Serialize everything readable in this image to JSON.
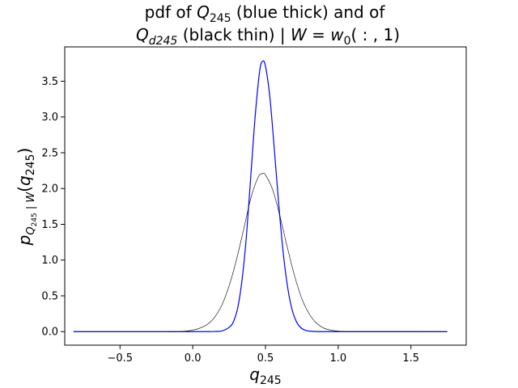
{
  "chart_data": {
    "type": "line",
    "title": {
      "line1": {
        "a": "pdf of ",
        "sym": "Q",
        "sub": "245",
        "b": " (blue thick) and of"
      },
      "line2": {
        "sym": "Q",
        "sub": "d245",
        "b": " (black thin)  | ",
        "w": "W",
        "eq": " = ",
        "w0": "w",
        "w0sub": "0",
        "args": "( : , 1)"
      }
    },
    "xlabel": {
      "sym": "q",
      "sub": "245"
    },
    "ylabel": {
      "p": "p",
      "subQ": "Q",
      "subQsub": "245",
      "bar": " | ",
      "subW": "W",
      "paren_open": "(",
      "q": "q",
      "qsub": "245",
      "paren_close": ")"
    },
    "xlim": [
      -0.88,
      1.88
    ],
    "ylim": [
      -0.1894,
      3.98
    ],
    "x_ticks": [
      -0.5,
      0.0,
      0.5,
      1.0,
      1.5
    ],
    "x_tick_labels": [
      "−0.5",
      "0.0",
      "0.5",
      "1.0",
      "1.5"
    ],
    "y_ticks": [
      0.0,
      0.5,
      1.0,
      1.5,
      2.0,
      2.5,
      3.0,
      3.5
    ],
    "y_tick_labels": [
      "0.0",
      "0.5",
      "1.0",
      "1.5",
      "2.0",
      "2.5",
      "3.0",
      "3.5"
    ],
    "grid": false,
    "series": [
      {
        "color": "#0000ff",
        "stroke": 1.2,
        "x": [
          -0.82,
          0.0,
          0.05,
          0.1,
          0.15,
          0.2,
          0.25,
          0.28,
          0.31,
          0.34,
          0.37,
          0.4,
          0.43,
          0.46,
          0.48,
          0.5,
          0.53,
          0.56,
          0.59,
          0.62,
          0.65,
          0.68,
          0.71,
          0.74,
          0.77,
          0.8,
          0.85,
          0.9,
          0.95,
          1.0,
          1.75
        ],
        "y": [
          0.0,
          0.0,
          0.0,
          0.0,
          0.002,
          0.009,
          0.06,
          0.14,
          0.34,
          0.74,
          1.36,
          2.2,
          3.03,
          3.64,
          3.78,
          3.71,
          3.28,
          2.57,
          1.81,
          1.14,
          0.65,
          0.33,
          0.15,
          0.06,
          0.022,
          0.007,
          0.001,
          0.0,
          0.0,
          0.0,
          0.0
        ]
      },
      {
        "color": "#000000",
        "stroke": 0.6,
        "x": [
          -0.82,
          -0.2,
          -0.1,
          0.0,
          0.05,
          0.1,
          0.15,
          0.2,
          0.25,
          0.3,
          0.35,
          0.4,
          0.45,
          0.48,
          0.5,
          0.55,
          0.6,
          0.65,
          0.7,
          0.75,
          0.8,
          0.85,
          0.9,
          0.95,
          1.0,
          1.1,
          1.75
        ],
        "y": [
          0.0,
          0.0,
          0.0,
          0.02,
          0.05,
          0.1,
          0.2,
          0.37,
          0.64,
          1.0,
          1.43,
          1.87,
          2.16,
          2.21,
          2.19,
          1.98,
          1.61,
          1.18,
          0.78,
          0.46,
          0.25,
          0.12,
          0.05,
          0.02,
          0.008,
          0.001,
          0.0
        ]
      }
    ]
  }
}
